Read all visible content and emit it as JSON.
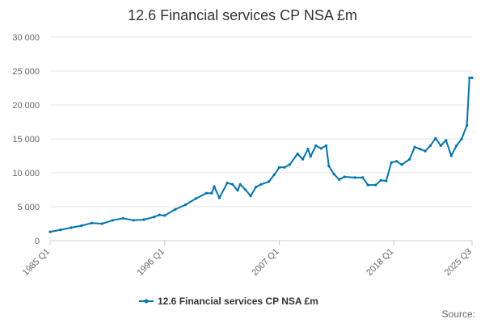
{
  "chart_data": {
    "type": "line",
    "title": "12.6 Financial services CP NSA £m",
    "xlabel": "",
    "ylabel": "",
    "x_tick_labels": [
      "1985 Q1",
      "1996 Q1",
      "2007 Q1",
      "2018 Q1",
      "2025 Q3"
    ],
    "y_ticks": [
      0,
      5000,
      10000,
      15000,
      20000,
      25000,
      30000
    ],
    "y_tick_labels": [
      "0",
      "5 000",
      "10 000",
      "15 000",
      "20 000",
      "25 000",
      "30 000"
    ],
    "ylim": [
      0,
      30000
    ],
    "xlim": [
      "1985 Q1",
      "2025 Q3"
    ],
    "grid": true,
    "legend_position": "bottom",
    "source_label": "Source:",
    "series": [
      {
        "name": "12.6 Financial services CP NSA £m",
        "color": "#0075b0",
        "points": [
          [
            "1985 Q1",
            1300
          ],
          [
            "1986 Q1",
            1600
          ],
          [
            "1987 Q1",
            1900
          ],
          [
            "1988 Q1",
            2200
          ],
          [
            "1989 Q1",
            2600
          ],
          [
            "1990 Q1",
            2500
          ],
          [
            "1991 Q1",
            3000
          ],
          [
            "1992 Q1",
            3300
          ],
          [
            "1993 Q1",
            3000
          ],
          [
            "1994 Q1",
            3100
          ],
          [
            "1995 Q1",
            3500
          ],
          [
            "1995 Q3",
            3800
          ],
          [
            "1996 Q1",
            3700
          ],
          [
            "1997 Q1",
            4600
          ],
          [
            "1998 Q1",
            5300
          ],
          [
            "1999 Q1",
            6200
          ],
          [
            "2000 Q1",
            7000
          ],
          [
            "2000 Q3",
            7000
          ],
          [
            "2000 Q4",
            8000
          ],
          [
            "2001 Q2",
            6300
          ],
          [
            "2002 Q1",
            8500
          ],
          [
            "2002 Q3",
            8300
          ],
          [
            "2003 Q1",
            7400
          ],
          [
            "2003 Q2",
            8300
          ],
          [
            "2003 Q4",
            7500
          ],
          [
            "2004 Q2",
            6600
          ],
          [
            "2004 Q4",
            7900
          ],
          [
            "2005 Q2",
            8300
          ],
          [
            "2006 Q1",
            8700
          ],
          [
            "2006 Q3",
            9700
          ],
          [
            "2007 Q1",
            10800
          ],
          [
            "2007 Q3",
            10800
          ],
          [
            "2008 Q1",
            11200
          ],
          [
            "2008 Q4",
            12800
          ],
          [
            "2009 Q2",
            12000
          ],
          [
            "2009 Q4",
            13500
          ],
          [
            "2010 Q1",
            12400
          ],
          [
            "2010 Q3",
            14000
          ],
          [
            "2011 Q1",
            13600
          ],
          [
            "2011 Q3",
            14000
          ],
          [
            "2011 Q4",
            11000
          ],
          [
            "2012 Q2",
            9800
          ],
          [
            "2012 Q4",
            9000
          ],
          [
            "2013 Q2",
            9400
          ],
          [
            "2014 Q2",
            9300
          ],
          [
            "2015 Q1",
            9300
          ],
          [
            "2015 Q3",
            8200
          ],
          [
            "2016 Q2",
            8200
          ],
          [
            "2016 Q4",
            8900
          ],
          [
            "2017 Q2",
            8800
          ],
          [
            "2017 Q4",
            11500
          ],
          [
            "2018 Q2",
            11700
          ],
          [
            "2018 Q4",
            11200
          ],
          [
            "2019 Q3",
            12000
          ],
          [
            "2020 Q1",
            13800
          ],
          [
            "2020 Q3",
            13500
          ],
          [
            "2021 Q1",
            13200
          ],
          [
            "2021 Q3",
            14000
          ],
          [
            "2022 Q1",
            15100
          ],
          [
            "2022 Q3",
            14000
          ],
          [
            "2023 Q1",
            14800
          ],
          [
            "2023 Q3",
            12500
          ],
          [
            "2024 Q1",
            14000
          ],
          [
            "2024 Q3",
            15000
          ],
          [
            "2025 Q1",
            17000
          ],
          [
            "2025 Q2",
            24000
          ],
          [
            "2025 Q3",
            24000
          ]
        ]
      }
    ]
  }
}
